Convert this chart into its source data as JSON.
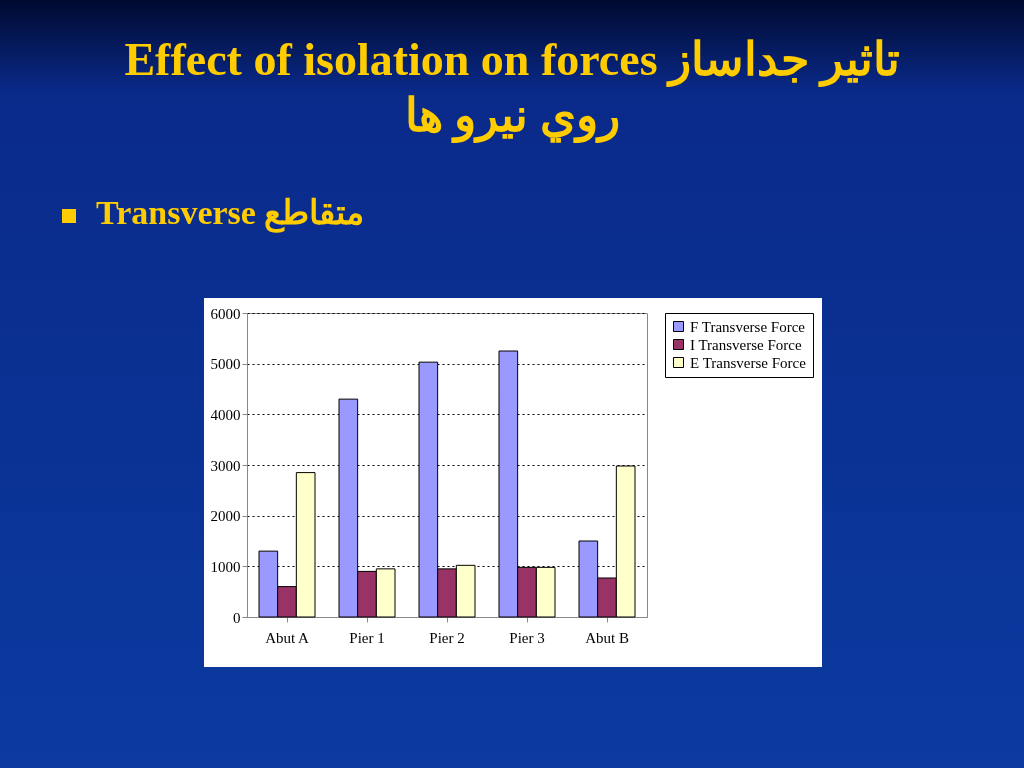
{
  "chart_data": {
    "type": "bar",
    "title": "Effect of isolation on forces تاثير جداساز روي نيرو ها",
    "subtitle": "Transverse متقاطع",
    "categories": [
      "Abut A",
      "Pier 1",
      "Pier 2",
      "Pier 3",
      "Abut B"
    ],
    "series": [
      {
        "name": "F Transverse Force",
        "color": "#9999ff",
        "values": [
          1300,
          4300,
          5030,
          5250,
          1500
        ]
      },
      {
        "name": "I Transverse Force",
        "color": "#993366",
        "values": [
          600,
          900,
          950,
          980,
          770
        ]
      },
      {
        "name": "E Transverse Force",
        "color": "#ffffcc",
        "values": [
          2850,
          950,
          1020,
          980,
          2980
        ]
      }
    ],
    "ylim": [
      0,
      6000
    ],
    "yticks": [
      0,
      1000,
      2000,
      3000,
      4000,
      5000,
      6000
    ],
    "grid": "y",
    "legend": "right"
  }
}
